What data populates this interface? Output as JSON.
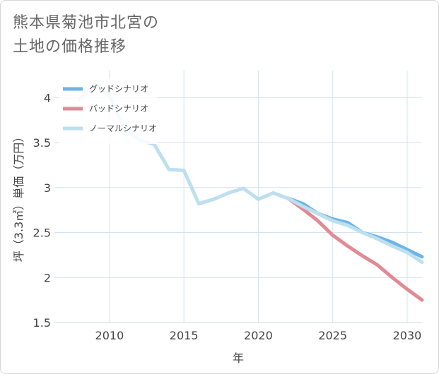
{
  "title_lines": [
    "熊本県菊池市北宮の",
    "土地の価格推移"
  ],
  "chart_data": {
    "type": "line",
    "title": "熊本県菊池市北宮の土地の価格推移",
    "xlabel": "年",
    "ylabel": "坪（3.3㎡）単価（万円）",
    "xlim": [
      2006.3,
      2031
    ],
    "ylim": [
      1.5,
      4.3
    ],
    "xticks": [
      2010,
      2015,
      2020,
      2025,
      2030
    ],
    "yticks": [
      1.5,
      2,
      2.5,
      3,
      3.5,
      4
    ],
    "grid": true,
    "legend_position": "top-left",
    "series": [
      {
        "name": "グッドシナリオ",
        "color": "#6cb4ea",
        "x": [
          2022,
          2023,
          2024,
          2025,
          2026,
          2027,
          2028,
          2029,
          2030,
          2031
        ],
        "y": [
          2.88,
          2.82,
          2.71,
          2.65,
          2.61,
          2.5,
          2.45,
          2.39,
          2.31,
          2.23
        ]
      },
      {
        "name": "バッドシナリオ",
        "color": "#e08a94",
        "x": [
          2022,
          2023,
          2024,
          2025,
          2026,
          2027,
          2028,
          2029,
          2030,
          2031
        ],
        "y": [
          2.88,
          2.76,
          2.63,
          2.47,
          2.35,
          2.24,
          2.14,
          2.0,
          1.87,
          1.75
        ]
      },
      {
        "name": "ノーマルシナリオ",
        "color": "#bddfee",
        "x": [
          2008,
          2009,
          2010,
          2011,
          2012,
          2013,
          2014,
          2015,
          2016,
          2017,
          2018,
          2019,
          2020,
          2021,
          2022,
          2023,
          2024,
          2025,
          2026,
          2027,
          2028,
          2029,
          2030,
          2031
        ],
        "y": [
          3.98,
          4.15,
          4.02,
          3.65,
          3.53,
          3.48,
          3.2,
          3.19,
          2.82,
          2.87,
          2.94,
          2.99,
          2.87,
          2.94,
          2.88,
          2.79,
          2.71,
          2.63,
          2.58,
          2.5,
          2.43,
          2.35,
          2.28,
          2.17
        ]
      }
    ]
  }
}
